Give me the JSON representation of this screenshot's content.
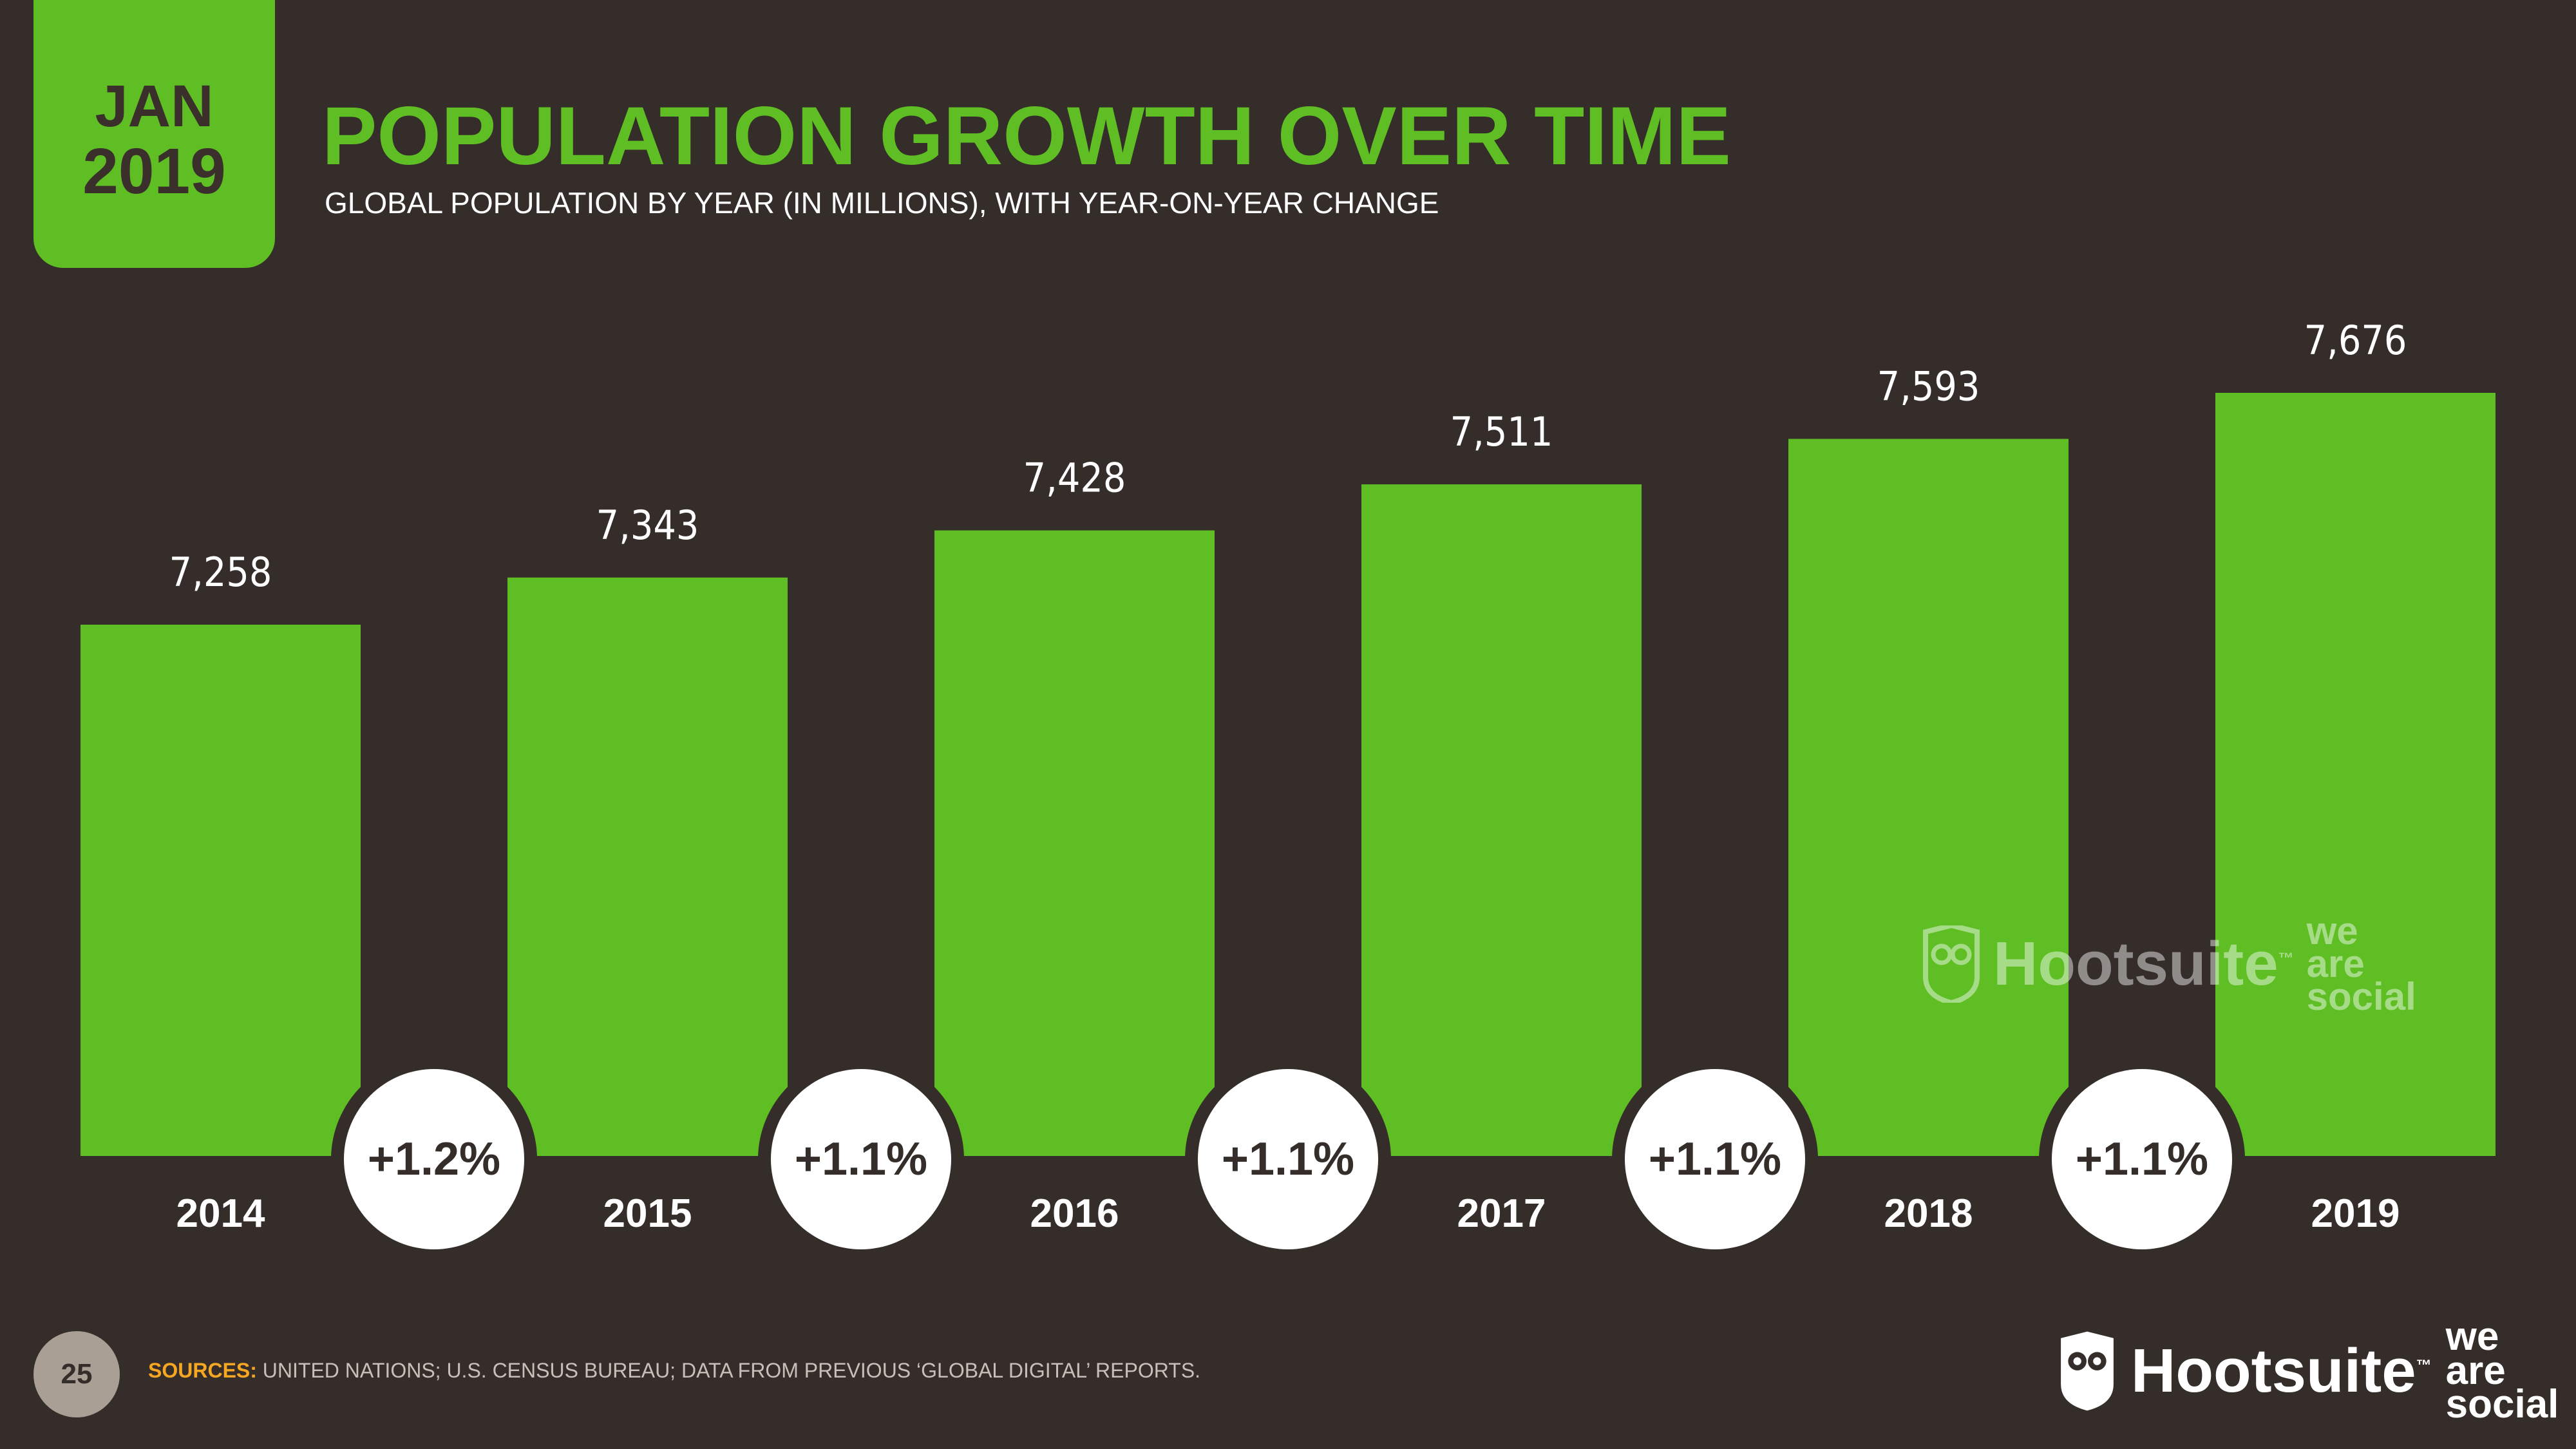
{
  "badge": {
    "month": "JAN",
    "year": "2019"
  },
  "header": {
    "title": "POPULATION GROWTH OVER TIME",
    "subtitle": "GLOBAL POPULATION BY YEAR (IN MILLIONS), WITH YEAR-ON-YEAR CHANGE"
  },
  "colors": {
    "accent": "#5ebe24",
    "background": "#352d29",
    "circle": "#ffffff",
    "sources_label": "#f5a623"
  },
  "chart_data": {
    "type": "bar",
    "title": "POPULATION GROWTH OVER TIME",
    "categories": [
      "2014",
      "2015",
      "2016",
      "2017",
      "2018",
      "2019"
    ],
    "values": [
      7258,
      7343,
      7428,
      7511,
      7593,
      7676
    ],
    "value_labels": [
      "7,258",
      "7,343",
      "7,428",
      "7,511",
      "7,593",
      "7,676"
    ],
    "yoy_change": [
      "+1.2%",
      "+1.1%",
      "+1.1%",
      "+1.1%",
      "+1.1%"
    ],
    "ylim": [
      6500,
      7800
    ],
    "xlabel": "",
    "ylabel": ""
  },
  "watermark": {
    "brand": "Hootsuite",
    "tm": "™",
    "line1": "we",
    "line2": "are",
    "line3": "social"
  },
  "footer": {
    "page_number": "25",
    "sources_label": "SOURCES:",
    "sources_text": " UNITED NATIONS; U.S. CENSUS BUREAU; DATA FROM PREVIOUS ‘GLOBAL DIGITAL’ REPORTS.",
    "brand": "Hootsuite",
    "tm": "™",
    "line1": "we",
    "line2": "are",
    "line3": "social"
  }
}
